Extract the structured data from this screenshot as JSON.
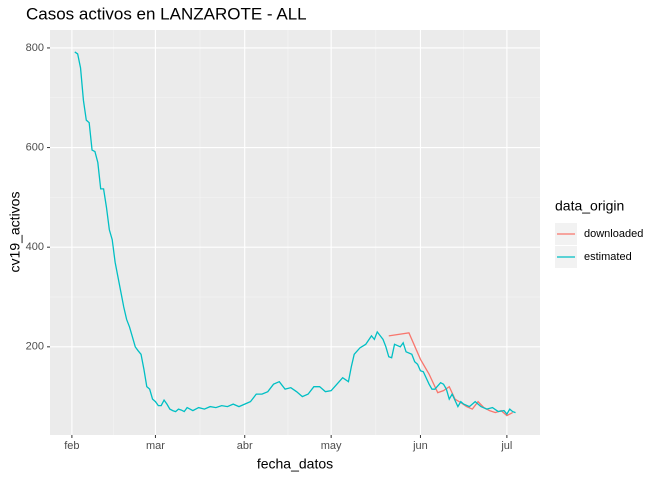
{
  "chart_data": {
    "type": "line",
    "title": "Casos activos en LANZAROTE - ALL",
    "x_label": "fecha_datos",
    "y_label": "cv19_activos",
    "legend_title": "data_origin",
    "xlim": [
      24.4,
      194.5
    ],
    "xticks": [
      {
        "value": 32,
        "label": "feb"
      },
      {
        "value": 61,
        "label": "mar"
      },
      {
        "value": 92,
        "label": "abr"
      },
      {
        "value": 122,
        "label": "may"
      },
      {
        "value": 153,
        "label": "jun"
      },
      {
        "value": 183,
        "label": "jul"
      }
    ],
    "ylim": [
      23,
      836
    ],
    "yticks": [
      200,
      400,
      600,
      800
    ],
    "grid": true,
    "legend": "right",
    "series": [
      {
        "name": "downloaded",
        "color": "#F8766D",
        "x": [
          142,
          149,
          153,
          156,
          159,
          161,
          163,
          165,
          167,
          169,
          171,
          173,
          175,
          177,
          179,
          181,
          183,
          185
        ],
        "values": [
          222,
          228,
          175,
          145,
          108,
          112,
          120,
          95,
          88,
          80,
          75,
          90,
          78,
          72,
          68,
          72,
          62,
          68
        ]
      },
      {
        "name": "estimated",
        "color": "#00BFC4",
        "x": [
          33,
          34,
          35,
          36,
          37,
          38,
          39,
          40,
          41,
          42,
          43,
          44,
          45,
          46,
          47,
          48,
          49,
          50,
          51,
          52,
          53,
          54,
          55,
          56,
          57,
          58,
          59,
          60,
          61,
          62,
          63,
          64,
          65,
          66,
          67,
          68,
          69,
          70,
          71,
          72,
          74,
          76,
          78,
          80,
          82,
          84,
          86,
          88,
          90,
          92,
          94,
          96,
          98,
          100,
          102,
          104,
          106,
          108,
          110,
          112,
          114,
          116,
          118,
          120,
          122,
          124,
          126,
          128,
          129,
          130,
          132,
          134,
          136,
          137,
          138,
          140,
          141,
          142,
          143,
          144,
          146,
          147,
          148,
          150,
          151,
          152,
          153,
          154,
          156,
          157,
          158,
          160,
          161,
          162,
          163,
          164,
          166,
          167,
          168,
          170,
          171,
          172,
          174,
          176,
          178,
          180,
          182,
          183,
          184,
          185,
          186
        ],
        "values": [
          792,
          788,
          760,
          695,
          655,
          650,
          595,
          592,
          570,
          517,
          517,
          480,
          435,
          415,
          370,
          340,
          310,
          280,
          255,
          240,
          220,
          200,
          192,
          185,
          155,
          120,
          115,
          95,
          90,
          82,
          82,
          93,
          85,
          75,
          72,
          70,
          75,
          73,
          70,
          78,
          72,
          78,
          75,
          80,
          78,
          82,
          80,
          85,
          80,
          85,
          90,
          105,
          105,
          110,
          125,
          130,
          115,
          118,
          110,
          100,
          105,
          120,
          120,
          110,
          112,
          125,
          138,
          130,
          160,
          185,
          198,
          205,
          222,
          215,
          230,
          215,
          200,
          180,
          178,
          205,
          200,
          208,
          190,
          185,
          170,
          165,
          152,
          150,
          125,
          115,
          115,
          128,
          125,
          115,
          95,
          105,
          80,
          90,
          85,
          80,
          85,
          90,
          80,
          75,
          78,
          70,
          72,
          65,
          75,
          70,
          68
        ]
      }
    ]
  }
}
